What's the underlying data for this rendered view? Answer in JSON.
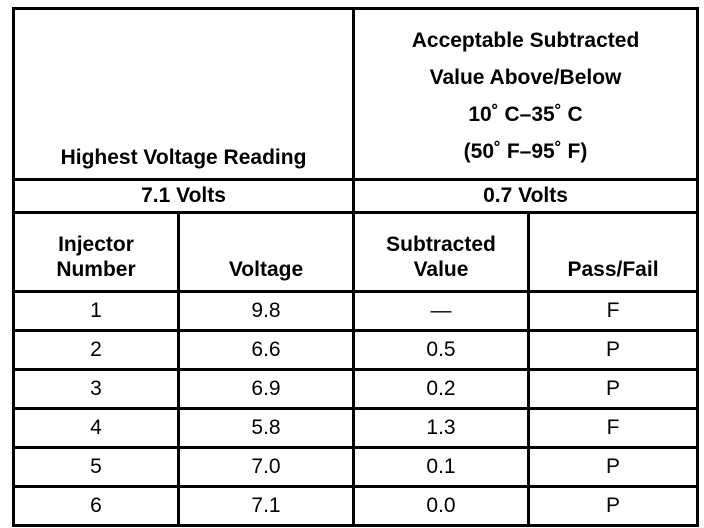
{
  "header": {
    "highest_voltage_label": "Highest Voltage Reading",
    "acceptable_lines": [
      "Acceptable Subtracted",
      "Value Above/Below",
      "10˚ C–35˚ C",
      "(50˚ F–95˚ F)"
    ]
  },
  "reference": {
    "highest_voltage_value": "7.1 Volts",
    "acceptable_value": "0.7 Volts"
  },
  "columns": {
    "injector": [
      "Injector",
      "Number"
    ],
    "voltage": "Voltage",
    "subtracted": [
      "Subtracted",
      "Value"
    ],
    "pass_fail": "Pass/Fail"
  },
  "rows": [
    {
      "injector": "1",
      "voltage": "9.8",
      "subtracted": "—",
      "result": "F"
    },
    {
      "injector": "2",
      "voltage": "6.6",
      "subtracted": "0.5",
      "result": "P"
    },
    {
      "injector": "3",
      "voltage": "6.9",
      "subtracted": "0.2",
      "result": "P"
    },
    {
      "injector": "4",
      "voltage": "5.8",
      "subtracted": "1.3",
      "result": "F"
    },
    {
      "injector": "5",
      "voltage": "7.0",
      "subtracted": "0.1",
      "result": "P"
    },
    {
      "injector": "6",
      "voltage": "7.1",
      "subtracted": "0.0",
      "result": "P"
    }
  ]
}
